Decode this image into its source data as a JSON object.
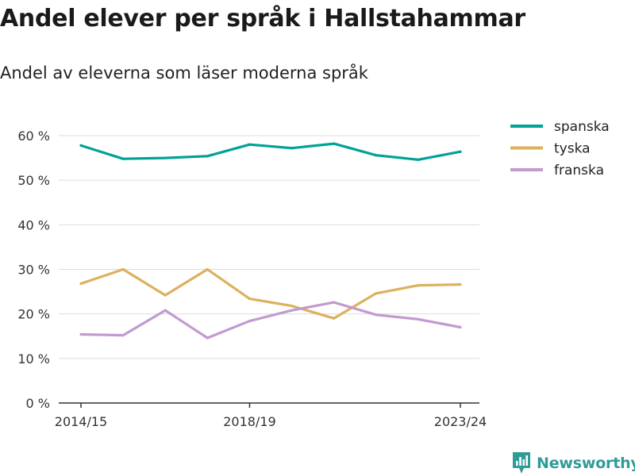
{
  "title": "Andel elever per språk i Hallstahammar",
  "subtitle": "Andel av eleverna som läser moderna språk",
  "brand": {
    "name": "Newsworthy",
    "icon": "bar-chart-logo-icon",
    "color": "#2f9c95"
  },
  "chart_data": {
    "type": "line",
    "x": [
      "2014/15",
      "2015/16",
      "2016/17",
      "2017/18",
      "2018/19",
      "2019/20",
      "2020/21",
      "2021/22",
      "2022/23",
      "2023/24"
    ],
    "x_tick_labels": [
      "2014/15",
      "2018/19",
      "2023/24"
    ],
    "series": [
      {
        "name": "spanska",
        "color": "#00a298",
        "values": [
          57.8,
          54.8,
          55.0,
          55.4,
          58.0,
          57.2,
          58.2,
          55.6,
          54.6,
          56.4
        ]
      },
      {
        "name": "tyska",
        "color": "#dbb15e",
        "values": [
          26.8,
          30.0,
          24.2,
          30.0,
          23.4,
          21.8,
          19.0,
          24.6,
          26.4,
          26.6
        ]
      },
      {
        "name": "franska",
        "color": "#c29acf",
        "values": [
          15.4,
          15.2,
          20.8,
          14.6,
          18.4,
          20.8,
          22.6,
          19.8,
          18.8,
          17.0
        ]
      }
    ],
    "y_ticks": [
      "0 %",
      "10 %",
      "20 %",
      "30 %",
      "40 %",
      "50 %",
      "60 %"
    ],
    "ylim": [
      0,
      60
    ],
    "grid": true,
    "legend_position": "top-right"
  }
}
